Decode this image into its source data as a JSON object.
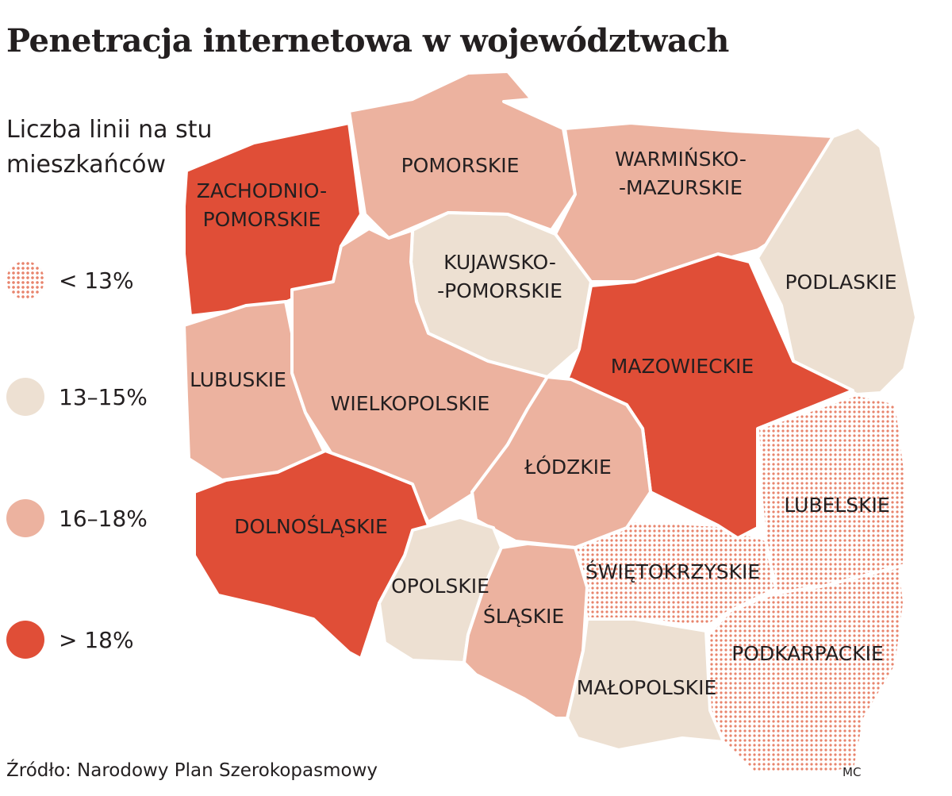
{
  "title": "Penetracja internetowa w województwach",
  "subtitle": "Liczba linii na stu mieszkańców",
  "legend": [
    {
      "label": "< 13%",
      "category": "lt13",
      "color": "#e8846c"
    },
    {
      "label": "13–15%",
      "category": "c13_15",
      "color": "#ede0d2"
    },
    {
      "label": "16–18%",
      "category": "c16_18",
      "color": "#ecb29f"
    },
    {
      "label": "> 18%",
      "category": "gt18",
      "color": "#e04e37"
    }
  ],
  "regions": [
    {
      "name": "zachodniopomorskie",
      "label_lines": [
        "ZACHODNIO-",
        "POMORSKIE"
      ],
      "category": "> 18%"
    },
    {
      "name": "pomorskie",
      "label_lines": [
        "POMORSKIE"
      ],
      "category": "16–18%"
    },
    {
      "name": "warminsko-mazurskie",
      "label_lines": [
        "WARMIŃSKO-",
        "-MAZURSKIE"
      ],
      "category": "16–18%"
    },
    {
      "name": "podlaskie",
      "label_lines": [
        "PODLASKIE"
      ],
      "category": "13–15%"
    },
    {
      "name": "kujawsko-pomorskie",
      "label_lines": [
        "KUJAWSKO-",
        "-POMORSKIE"
      ],
      "category": "13–15%"
    },
    {
      "name": "mazowieckie",
      "label_lines": [
        "MAZOWIECKIE"
      ],
      "category": "> 18%"
    },
    {
      "name": "lubuskie",
      "label_lines": [
        "LUBUSKIE"
      ],
      "category": "16–18%"
    },
    {
      "name": "wielkopolskie",
      "label_lines": [
        "WIELKOPOLSKIE"
      ],
      "category": "16–18%"
    },
    {
      "name": "lodzkie",
      "label_lines": [
        "ŁÓDZKIE"
      ],
      "category": "16–18%"
    },
    {
      "name": "lubelskie",
      "label_lines": [
        "LUBELSKIE"
      ],
      "category": "< 13%"
    },
    {
      "name": "dolnoslaskie",
      "label_lines": [
        "DOLNOŚLĄSKIE"
      ],
      "category": "> 18%"
    },
    {
      "name": "opolskie",
      "label_lines": [
        "OPOLSKIE"
      ],
      "category": "13–15%"
    },
    {
      "name": "swietokrzyskie",
      "label_lines": [
        "ŚWIĘTOKRZYSKIE"
      ],
      "category": "< 13%"
    },
    {
      "name": "slaskie",
      "label_lines": [
        "ŚLĄSKIE"
      ],
      "category": "16–18%"
    },
    {
      "name": "malopolskie",
      "label_lines": [
        "MAŁOPOLSKIE"
      ],
      "category": "13–15%"
    },
    {
      "name": "podkarpackie",
      "label_lines": [
        "PODKARPACKIE"
      ],
      "category": "< 13%"
    }
  ],
  "source": "Źródło: Narodowy Plan Szerokopasmowy",
  "author": "MC"
}
